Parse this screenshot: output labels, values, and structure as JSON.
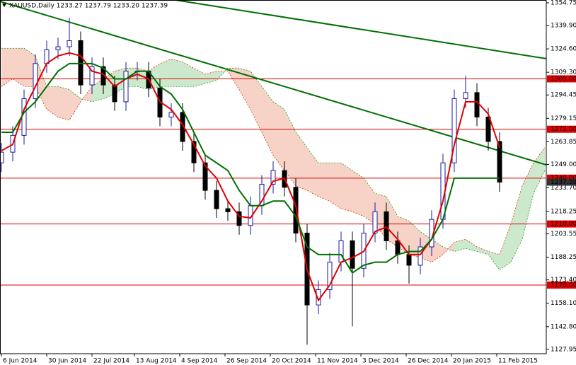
{
  "chart_data": {
    "type": "candlestick",
    "title": "XAUUSD,Daily  1233.27 1237.79 1233.20 1237.39",
    "x": [
      0,
      4,
      8,
      12,
      16,
      20,
      24,
      28,
      32,
      36,
      40,
      44,
      48,
      52,
      56,
      60,
      64,
      68,
      72,
      76,
      80,
      84,
      88,
      92,
      96,
      100,
      104,
      108,
      112,
      116,
      120,
      124,
      128,
      132,
      136,
      140,
      144,
      148,
      152,
      156,
      160,
      164,
      168,
      172,
      176
    ],
    "open": [
      1250,
      1257,
      1268,
      1292,
      1315,
      1324,
      1326,
      1330,
      1301,
      1313,
      1301,
      1290,
      1310,
      1310,
      1299,
      1280,
      1283,
      1264,
      1250,
      1232,
      1220,
      1218,
      1209,
      1222,
      1236,
      1245,
      1234,
      1204,
      1157,
      1167,
      1185,
      1199,
      1181,
      1204,
      1218,
      1199,
      1190,
      1183,
      1195,
      1213,
      1250,
      1292,
      1296,
      1280,
      1264
    ],
    "high": [
      1263,
      1274,
      1298,
      1321,
      1330,
      1332,
      1345,
      1336,
      1319,
      1319,
      1307,
      1316,
      1316,
      1316,
      1305,
      1289,
      1289,
      1270,
      1256,
      1238,
      1226,
      1224,
      1228,
      1242,
      1251,
      1251,
      1240,
      1210,
      1173,
      1191,
      1205,
      1205,
      1210,
      1224,
      1224,
      1205,
      1196,
      1201,
      1219,
      1256,
      1298,
      1307,
      1302,
      1286,
      1270
    ],
    "low": [
      1244,
      1251,
      1262,
      1286,
      1309,
      1318,
      1320,
      1295,
      1295,
      1295,
      1284,
      1284,
      1304,
      1293,
      1274,
      1274,
      1258,
      1244,
      1226,
      1214,
      1212,
      1203,
      1203,
      1216,
      1230,
      1228,
      1198,
      1131,
      1151,
      1161,
      1179,
      1143,
      1175,
      1198,
      1193,
      1184,
      1171,
      1177,
      1189,
      1207,
      1244,
      1286,
      1274,
      1258,
      1231
    ],
    "close": [
      1257,
      1268,
      1292,
      1315,
      1324,
      1326,
      1330,
      1301,
      1313,
      1301,
      1290,
      1310,
      1310,
      1299,
      1280,
      1283,
      1264,
      1250,
      1232,
      1220,
      1218,
      1209,
      1222,
      1236,
      1245,
      1234,
      1204,
      1157,
      1167,
      1185,
      1199,
      1181,
      1204,
      1218,
      1199,
      1190,
      1183,
      1195,
      1213,
      1250,
      1292,
      1296,
      1280,
      1264,
      1237.39
    ],
    "up_color": "#1a1aa0",
    "down_color": "#000000",
    "series": [
      {
        "color": "#e00000",
        "values": [
          1258,
          1262,
          1285,
          1300,
          1315,
          1320,
          1322,
          1320,
          1310,
          1308,
          1300,
          1305,
          1308,
          1305,
          1290,
          1285,
          1275,
          1262,
          1248,
          1240,
          1225,
          1215,
          1214,
          1225,
          1238,
          1240,
          1222,
          1180,
          1160,
          1170,
          1185,
          1188,
          1192,
          1205,
          1208,
          1200,
          1190,
          1190,
          1200,
          1225,
          1262,
          1290,
          1290,
          1282,
          1260
        ]
      },
      {
        "color": "#007000",
        "values": [
          1270,
          1270,
          1283,
          1290,
          1300,
          1310,
          1315,
          1315,
          1315,
          1312,
          1305,
          1305,
          1310,
          1310,
          1300,
          1295,
          1285,
          1270,
          1255,
          1250,
          1245,
          1232,
          1222,
          1222,
          1225,
          1225,
          1215,
          1195,
          1190,
          1190,
          1190,
          1178,
          1183,
          1185,
          1185,
          1190,
          1192,
          1192,
          1200,
          1213,
          1240,
          1240,
          1240,
          1240,
          1240
        ]
      }
    ],
    "cloud": {
      "x": [
        0,
        4,
        8,
        12,
        16,
        20,
        24,
        28,
        32,
        36,
        40,
        44,
        48,
        52,
        56,
        60,
        64,
        68,
        72,
        76,
        80,
        84,
        88,
        92,
        96,
        100,
        104,
        108,
        112,
        116,
        120,
        124,
        128,
        132,
        136,
        140,
        144,
        148,
        152,
        156,
        160,
        164,
        168,
        172,
        176,
        180,
        184,
        188,
        192
      ],
      "span_a": [
        1300,
        1305,
        1300,
        1300,
        1285,
        1280,
        1278,
        1290,
        1300,
        1305,
        1310,
        1312,
        1312,
        1310,
        1315,
        1318,
        1316,
        1312,
        1308,
        1310,
        1310,
        1298,
        1285,
        1270,
        1255,
        1245,
        1235,
        1232,
        1228,
        1225,
        1220,
        1218,
        1215,
        1210,
        1200,
        1195,
        1190,
        1188,
        1185,
        1190,
        1198,
        1200,
        1195,
        1192,
        1190,
        1210,
        1235,
        1250,
        1260
      ],
      "span_b": [
        1325,
        1325,
        1325,
        1320,
        1300,
        1300,
        1298,
        1292,
        1290,
        1292,
        1295,
        1300,
        1300,
        1298,
        1300,
        1300,
        1300,
        1300,
        1302,
        1304,
        1312,
        1312,
        1310,
        1300,
        1290,
        1285,
        1270,
        1260,
        1250,
        1250,
        1250,
        1245,
        1240,
        1230,
        1228,
        1215,
        1212,
        1205,
        1200,
        1195,
        1192,
        1194,
        1192,
        1190,
        1180,
        1185,
        1200,
        1230,
        1245
      ],
      "up_color": "#1a9a1a",
      "down_color": "#d83000"
    },
    "levels": [
      {
        "value": 1305,
        "label": "1305.00"
      },
      {
        "value": 1272,
        "label": "1272.00"
      },
      {
        "value": 1240,
        "label": "1240.00"
      },
      {
        "value": 1210,
        "label": "1210.00"
      },
      {
        "value": 1170,
        "label": "1170.00"
      }
    ],
    "level_color": "#e00000",
    "trendlines": [
      {
        "x": [
          61.5,
          192.5
        ],
        "y": [
          1356.6,
          1318.2
        ]
      },
      {
        "x": [
          -0.5,
          192.5
        ],
        "y": [
          1355.7,
          1248.7
        ]
      }
    ],
    "trendline_color": "#007000",
    "last_price": {
      "value": 1237.39,
      "label": "1237.39"
    },
    "xlim": [
      -0.5,
      192.5
    ],
    "xticks": [
      {
        "value": 0,
        "label": "6 Jun 2014"
      },
      {
        "value": 16,
        "label": "30 Jun 2014"
      },
      {
        "value": 32,
        "label": "22 Jul 2014"
      },
      {
        "value": 47,
        "label": "13 Aug 2014"
      },
      {
        "value": 63,
        "label": "4 Sep 2014"
      },
      {
        "value": 79,
        "label": "26 Sep 2014"
      },
      {
        "value": 95,
        "label": "20 Oct 2014"
      },
      {
        "value": 111,
        "label": "11 Nov 2014"
      },
      {
        "value": 127,
        "label": "3 Dec 2014"
      },
      {
        "value": 143,
        "label": "26 Dec 2014"
      },
      {
        "value": 159,
        "label": "20 Jan 2015"
      },
      {
        "value": 175,
        "label": "11 Feb 2015"
      }
    ],
    "ylim": [
      1125.1,
      1356.6
    ],
    "yticks": [
      {
        "value": 1354.75,
        "label": "1354.75"
      },
      {
        "value": 1339.9,
        "label": "1339.90"
      },
      {
        "value": 1324.6,
        "label": "1324.60"
      },
      {
        "value": 1309.3,
        "label": "1309.30"
      },
      {
        "value": 1294.45,
        "label": "1294.45"
      },
      {
        "value": 1279.15,
        "label": "1279.15"
      },
      {
        "value": 1263.85,
        "label": "1263.85"
      },
      {
        "value": 1249,
        "label": "1249.00"
      },
      {
        "value": 1233.7,
        "label": "1233.70"
      },
      {
        "value": 1218.25,
        "label": "1218.25"
      },
      {
        "value": 1203.55,
        "label": "1203.55"
      },
      {
        "value": 1188.25,
        "label": "1188.25"
      },
      {
        "value": 1173.4,
        "label": "1173.40"
      },
      {
        "value": 1158.1,
        "label": "1158.10"
      },
      {
        "value": 1142.8,
        "label": "1142.80"
      },
      {
        "value": 1127.95,
        "label": "1127.95"
      }
    ]
  }
}
